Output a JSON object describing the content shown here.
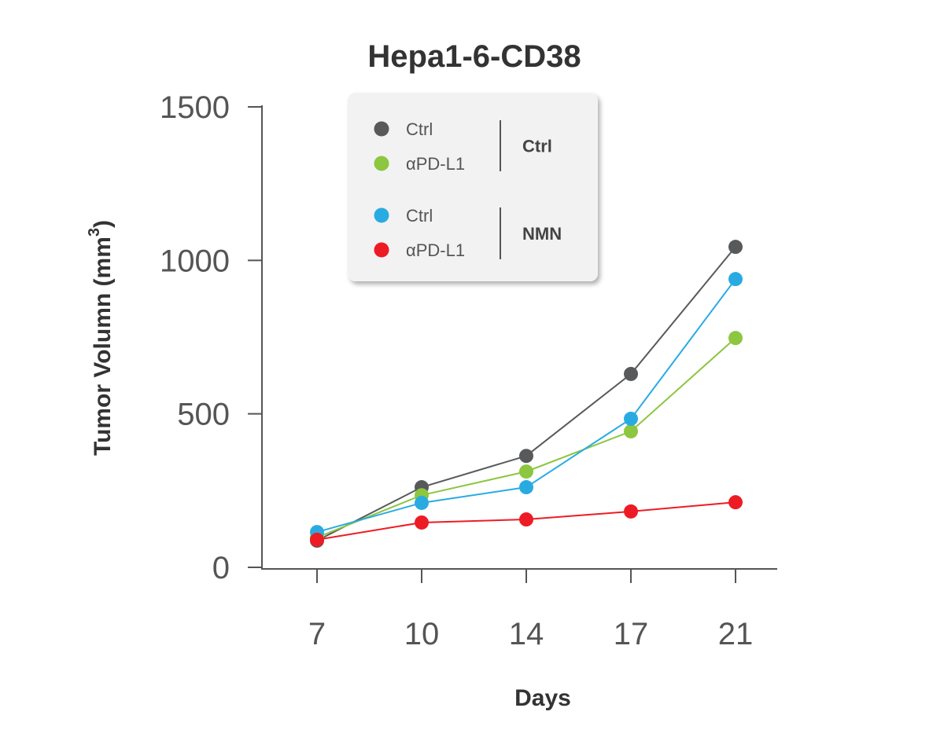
{
  "chart_data": {
    "type": "line",
    "title": "Hepa1-6-CD38",
    "xlabel": "Days",
    "ylabel": "Tumor Volumn (mm",
    "ylabel_superscript": "3",
    "ylabel_close": ")",
    "categories": [
      "7",
      "10",
      "14",
      "17",
      "21"
    ],
    "ylim": [
      0,
      1500
    ],
    "yticks": [
      "0",
      "500",
      "1000",
      "1500"
    ],
    "grid": false,
    "legend_position": "top-center",
    "series": [
      {
        "name": "Ctrl",
        "group": "Ctrl",
        "color": "#58595b",
        "values": [
          87,
          261,
          363,
          630,
          1044
        ]
      },
      {
        "name": "αPD-L1",
        "group": "Ctrl",
        "color": "#8dc63f",
        "values": [
          97,
          235,
          312,
          443,
          747
        ]
      },
      {
        "name": "Ctrl",
        "group": "NMN",
        "color": "#29abe2",
        "values": [
          115,
          210,
          261,
          484,
          939
        ]
      },
      {
        "name": "αPD-L1",
        "group": "NMN",
        "color": "#ed1c24",
        "values": [
          90,
          146,
          156,
          182,
          212
        ]
      }
    ],
    "legend_groups": [
      "Ctrl",
      "NMN"
    ]
  }
}
